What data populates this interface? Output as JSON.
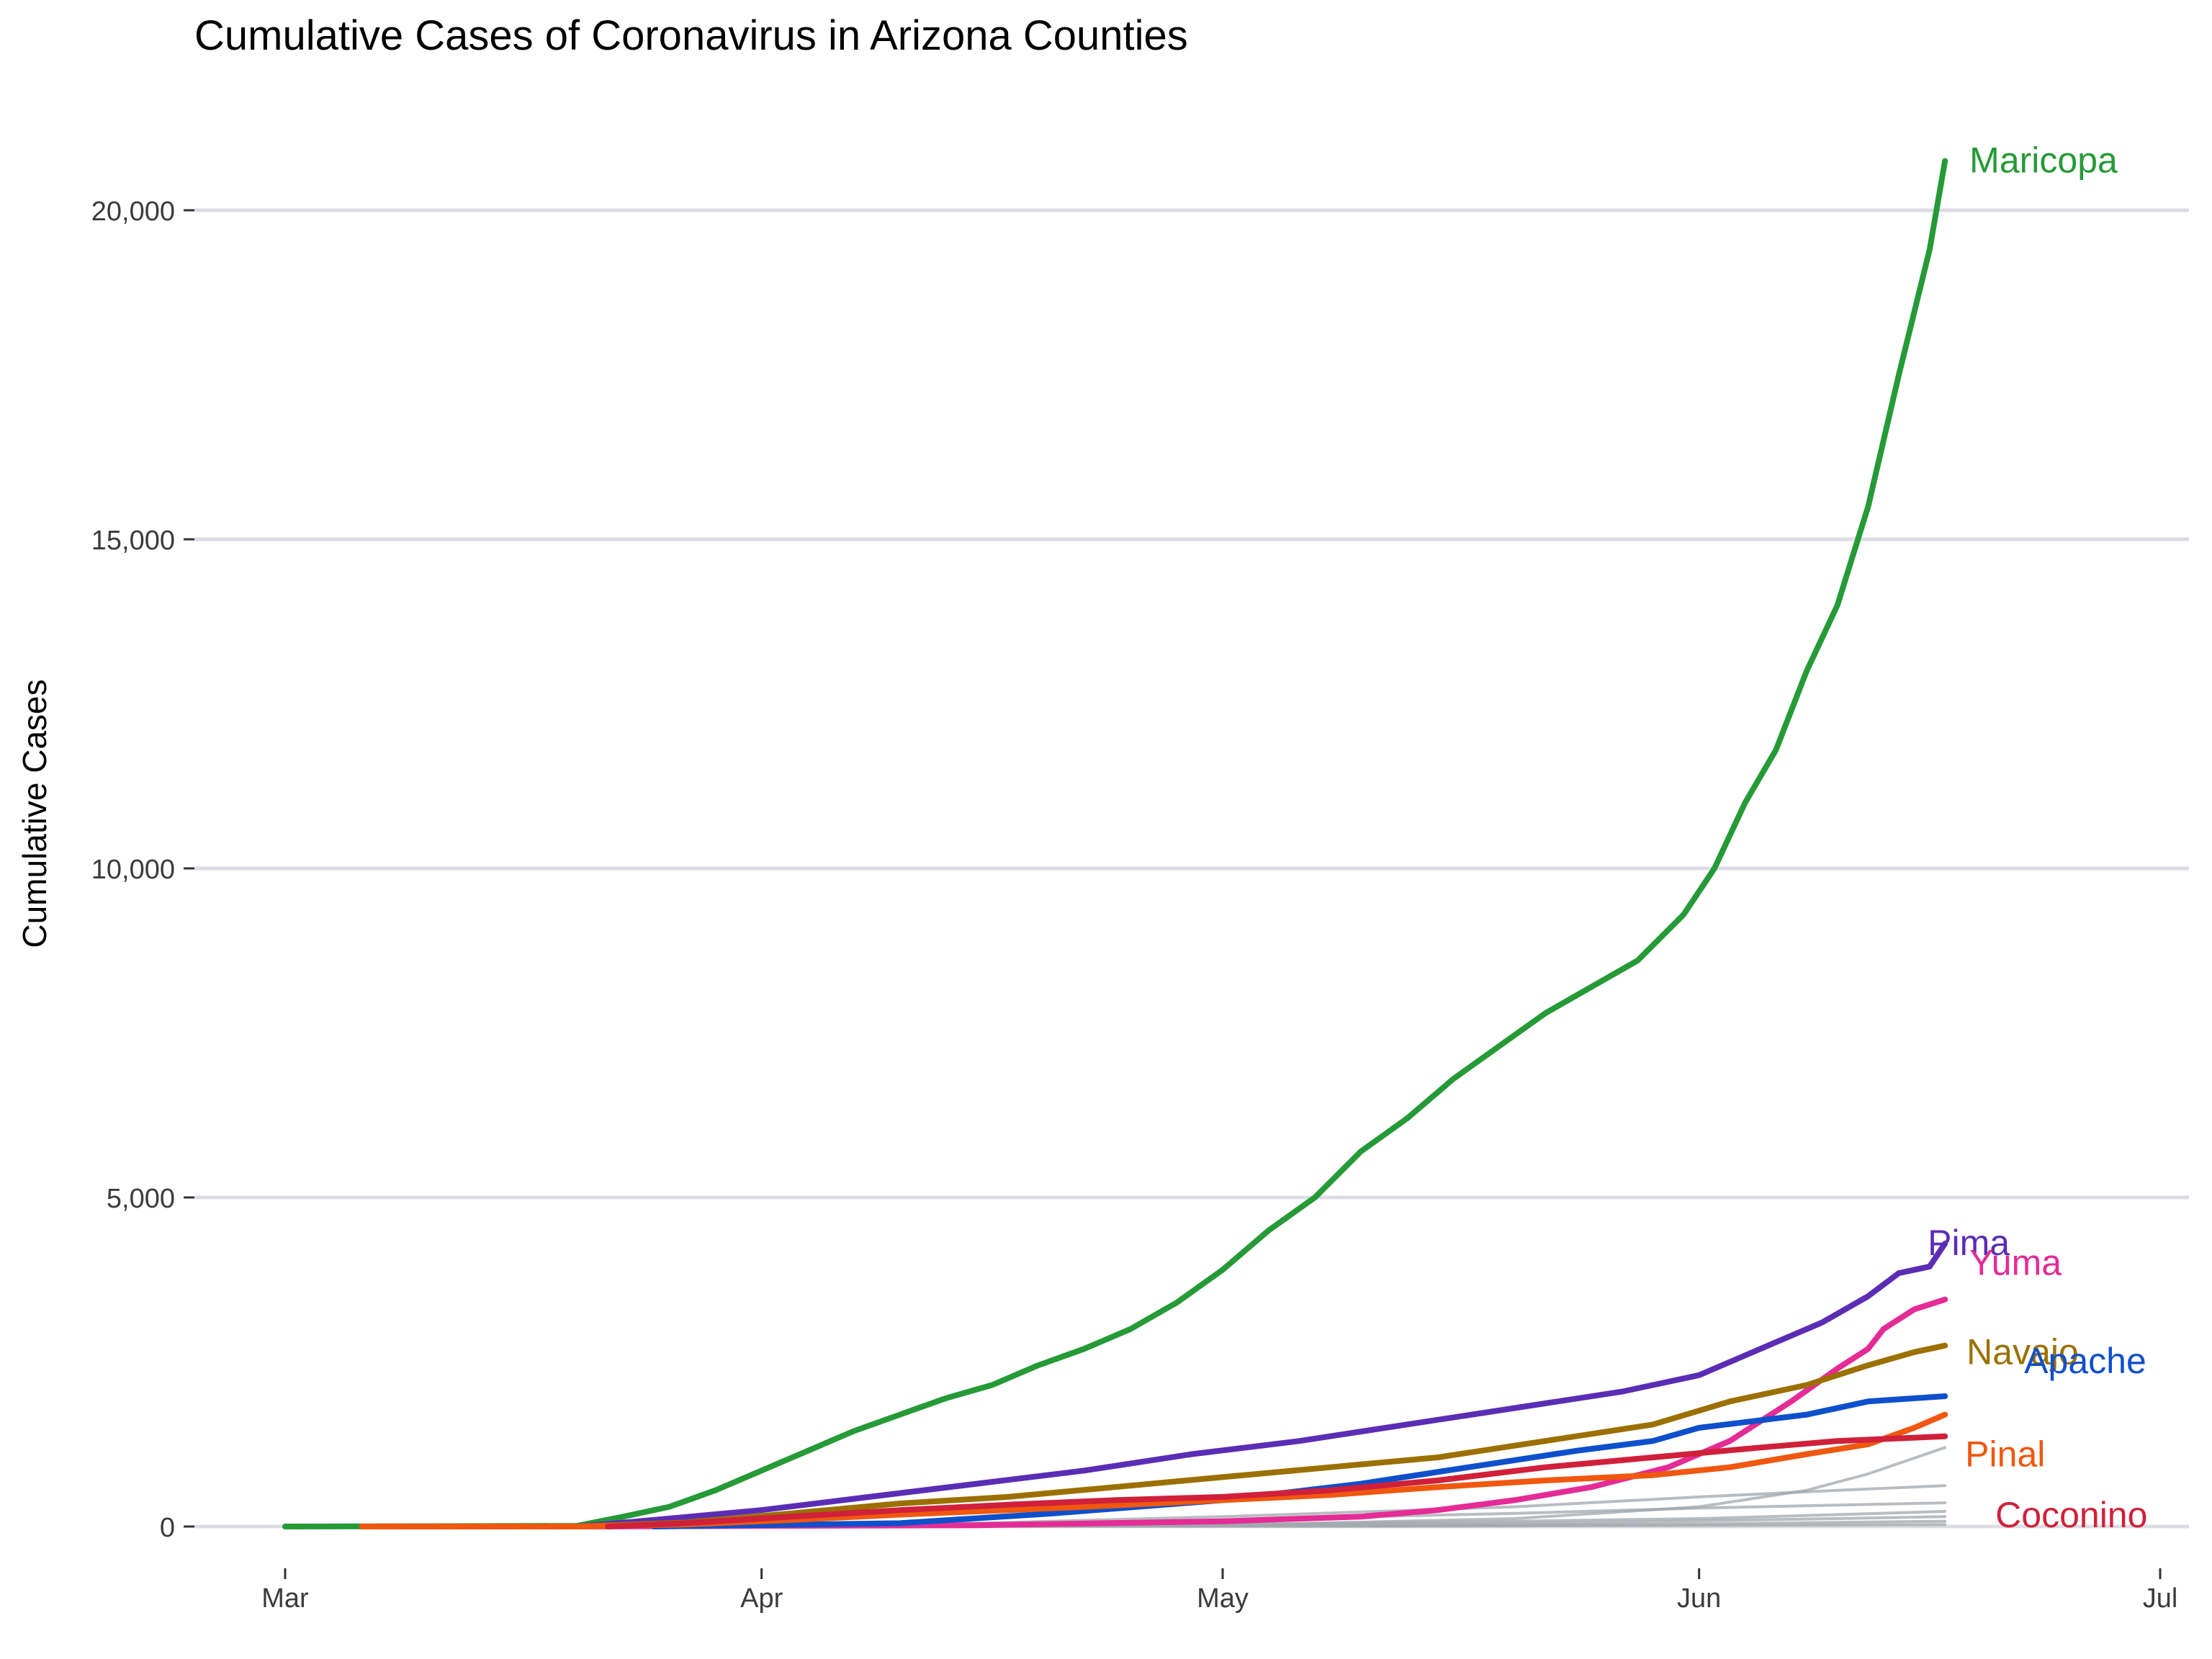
{
  "chart_data": {
    "type": "line",
    "title": "Cumulative Cases of Coronavirus in Arizona Counties",
    "xlabel": "",
    "ylabel": "Cumulative Cases",
    "x_ticks": [
      "Mar",
      "Apr",
      "May",
      "Jun",
      "Jul"
    ],
    "x_tick_dates": [
      "2020-03-01",
      "2020-04-01",
      "2020-05-01",
      "2020-06-01",
      "2020-07-01"
    ],
    "y_ticks": [
      0,
      5000,
      10000,
      15000,
      20000
    ],
    "y_tick_labels": [
      "0",
      "5,000",
      "10,000",
      "15,000",
      "20,000"
    ],
    "xlim": [
      "2020-02-24",
      "2020-07-02"
    ],
    "ylim": [
      -500,
      21300
    ],
    "grid": true,
    "legend": "direct labels at line ends",
    "series": [
      {
        "name": "Maricopa",
        "color": "#259a37",
        "highlight": true,
        "points": [
          [
            "2020-03-01",
            0
          ],
          [
            "2020-03-20",
            10
          ],
          [
            "2020-03-23",
            150
          ],
          [
            "2020-03-26",
            300
          ],
          [
            "2020-03-29",
            550
          ],
          [
            "2020-04-01",
            850
          ],
          [
            "2020-04-04",
            1150
          ],
          [
            "2020-04-07",
            1450
          ],
          [
            "2020-04-10",
            1700
          ],
          [
            "2020-04-13",
            1950
          ],
          [
            "2020-04-16",
            2150
          ],
          [
            "2020-04-19",
            2450
          ],
          [
            "2020-04-22",
            2700
          ],
          [
            "2020-04-25",
            3000
          ],
          [
            "2020-04-28",
            3400
          ],
          [
            "2020-05-01",
            3900
          ],
          [
            "2020-05-04",
            4500
          ],
          [
            "2020-05-07",
            5000
          ],
          [
            "2020-05-10",
            5700
          ],
          [
            "2020-05-13",
            6200
          ],
          [
            "2020-05-16",
            6800
          ],
          [
            "2020-05-19",
            7300
          ],
          [
            "2020-05-22",
            7800
          ],
          [
            "2020-05-25",
            8200
          ],
          [
            "2020-05-28",
            8600
          ],
          [
            "2020-05-31",
            9300
          ],
          [
            "2020-06-02",
            10000
          ],
          [
            "2020-06-04",
            11000
          ],
          [
            "2020-06-06",
            11800
          ],
          [
            "2020-06-08",
            13000
          ],
          [
            "2020-06-10",
            14000
          ],
          [
            "2020-06-12",
            15500
          ],
          [
            "2020-06-14",
            17500
          ],
          [
            "2020-06-16",
            19400
          ],
          [
            "2020-06-17",
            20750
          ]
        ]
      },
      {
        "name": "Pima",
        "color": "#5b2db5",
        "highlight": true,
        "points": [
          [
            "2020-03-20",
            0
          ],
          [
            "2020-03-25",
            100
          ],
          [
            "2020-04-01",
            250
          ],
          [
            "2020-04-08",
            450
          ],
          [
            "2020-04-15",
            650
          ],
          [
            "2020-04-22",
            850
          ],
          [
            "2020-04-29",
            1100
          ],
          [
            "2020-05-06",
            1300
          ],
          [
            "2020-05-13",
            1550
          ],
          [
            "2020-05-20",
            1800
          ],
          [
            "2020-05-27",
            2050
          ],
          [
            "2020-06-01",
            2300
          ],
          [
            "2020-06-05",
            2700
          ],
          [
            "2020-06-09",
            3100
          ],
          [
            "2020-06-12",
            3500
          ],
          [
            "2020-06-14",
            3850
          ],
          [
            "2020-06-16",
            3950
          ],
          [
            "2020-06-17",
            4300
          ]
        ]
      },
      {
        "name": "Yuma",
        "color": "#e52b96",
        "highlight": true,
        "points": [
          [
            "2020-03-20",
            0
          ],
          [
            "2020-04-15",
            20
          ],
          [
            "2020-05-01",
            80
          ],
          [
            "2020-05-10",
            150
          ],
          [
            "2020-05-15",
            250
          ],
          [
            "2020-05-20",
            400
          ],
          [
            "2020-05-25",
            600
          ],
          [
            "2020-05-30",
            900
          ],
          [
            "2020-06-03",
            1300
          ],
          [
            "2020-06-07",
            1900
          ],
          [
            "2020-06-10",
            2400
          ],
          [
            "2020-06-12",
            2700
          ],
          [
            "2020-06-13",
            3000
          ],
          [
            "2020-06-15",
            3300
          ],
          [
            "2020-06-17",
            3450
          ]
        ]
      },
      {
        "name": "Navajo",
        "color": "#9b7000",
        "highlight": true,
        "points": [
          [
            "2020-03-20",
            0
          ],
          [
            "2020-03-27",
            60
          ],
          [
            "2020-04-03",
            200
          ],
          [
            "2020-04-10",
            350
          ],
          [
            "2020-04-17",
            450
          ],
          [
            "2020-04-24",
            600
          ],
          [
            "2020-05-01",
            750
          ],
          [
            "2020-05-08",
            900
          ],
          [
            "2020-05-15",
            1050
          ],
          [
            "2020-05-22",
            1300
          ],
          [
            "2020-05-29",
            1550
          ],
          [
            "2020-06-03",
            1900
          ],
          [
            "2020-06-08",
            2150
          ],
          [
            "2020-06-12",
            2450
          ],
          [
            "2020-06-15",
            2650
          ],
          [
            "2020-06-17",
            2750
          ]
        ]
      },
      {
        "name": "Apache",
        "color": "#0e4fcc",
        "highlight": true,
        "points": [
          [
            "2020-03-25",
            0
          ],
          [
            "2020-04-10",
            50
          ],
          [
            "2020-04-20",
            200
          ],
          [
            "2020-05-01",
            400
          ],
          [
            "2020-05-10",
            650
          ],
          [
            "2020-05-17",
            900
          ],
          [
            "2020-05-24",
            1150
          ],
          [
            "2020-05-29",
            1300
          ],
          [
            "2020-06-01",
            1500
          ],
          [
            "2020-06-08",
            1700
          ],
          [
            "2020-06-12",
            1900
          ],
          [
            "2020-06-17",
            1980
          ]
        ]
      },
      {
        "name": "Pinal",
        "color": "#f0570f",
        "highlight": true,
        "points": [
          [
            "2020-03-06",
            0
          ],
          [
            "2020-03-20",
            0
          ],
          [
            "2020-03-27",
            30
          ],
          [
            "2020-04-03",
            100
          ],
          [
            "2020-04-10",
            180
          ],
          [
            "2020-04-17",
            250
          ],
          [
            "2020-04-24",
            320
          ],
          [
            "2020-05-01",
            400
          ],
          [
            "2020-05-08",
            480
          ],
          [
            "2020-05-15",
            600
          ],
          [
            "2020-05-22",
            700
          ],
          [
            "2020-05-29",
            780
          ],
          [
            "2020-06-03",
            900
          ],
          [
            "2020-06-08",
            1100
          ],
          [
            "2020-06-12",
            1250
          ],
          [
            "2020-06-15",
            1500
          ],
          [
            "2020-06-17",
            1700
          ]
        ]
      },
      {
        "name": "Coconino",
        "color": "#d0203a",
        "highlight": true,
        "points": [
          [
            "2020-03-22",
            0
          ],
          [
            "2020-03-27",
            50
          ],
          [
            "2020-04-03",
            150
          ],
          [
            "2020-04-10",
            250
          ],
          [
            "2020-04-17",
            330
          ],
          [
            "2020-04-24",
            400
          ],
          [
            "2020-05-01",
            450
          ],
          [
            "2020-05-08",
            550
          ],
          [
            "2020-05-15",
            700
          ],
          [
            "2020-05-22",
            900
          ],
          [
            "2020-05-29",
            1050
          ],
          [
            "2020-06-05",
            1200
          ],
          [
            "2020-06-10",
            1300
          ],
          [
            "2020-06-17",
            1370
          ]
        ]
      },
      {
        "highlight": false,
        "color": "#a0a7ad",
        "points": [
          [
            "2020-03-20",
            0
          ],
          [
            "2020-05-01",
            20
          ],
          [
            "2020-05-20",
            120
          ],
          [
            "2020-06-01",
            300
          ],
          [
            "2020-06-08",
            550
          ],
          [
            "2020-06-12",
            800
          ],
          [
            "2020-06-17",
            1200
          ]
        ]
      },
      {
        "highlight": false,
        "color": "#a0a7ad",
        "points": [
          [
            "2020-03-20",
            0
          ],
          [
            "2020-04-15",
            50
          ],
          [
            "2020-05-01",
            150
          ],
          [
            "2020-05-20",
            300
          ],
          [
            "2020-06-01",
            450
          ],
          [
            "2020-06-10",
            550
          ],
          [
            "2020-06-17",
            620
          ]
        ]
      },
      {
        "highlight": false,
        "color": "#a0a7ad",
        "points": [
          [
            "2020-03-20",
            0
          ],
          [
            "2020-04-15",
            30
          ],
          [
            "2020-05-01",
            100
          ],
          [
            "2020-05-20",
            200
          ],
          [
            "2020-06-01",
            280
          ],
          [
            "2020-06-17",
            360
          ]
        ]
      },
      {
        "highlight": false,
        "color": "#a0a7ad",
        "points": [
          [
            "2020-03-20",
            0
          ],
          [
            "2020-05-01",
            30
          ],
          [
            "2020-05-20",
            80
          ],
          [
            "2020-06-01",
            120
          ],
          [
            "2020-06-10",
            180
          ],
          [
            "2020-06-17",
            230
          ]
        ]
      },
      {
        "highlight": false,
        "color": "#a0a7ad",
        "points": [
          [
            "2020-03-20",
            0
          ],
          [
            "2020-05-01",
            15
          ],
          [
            "2020-05-25",
            60
          ],
          [
            "2020-06-10",
            120
          ],
          [
            "2020-06-17",
            150
          ]
        ]
      },
      {
        "highlight": false,
        "color": "#a0a7ad",
        "points": [
          [
            "2020-03-20",
            0
          ],
          [
            "2020-05-10",
            10
          ],
          [
            "2020-06-01",
            40
          ],
          [
            "2020-06-17",
            80
          ]
        ]
      },
      {
        "highlight": false,
        "color": "#a0a7ad",
        "points": [
          [
            "2020-03-25",
            0
          ],
          [
            "2020-05-15",
            5
          ],
          [
            "2020-06-17",
            30
          ]
        ]
      }
    ]
  }
}
